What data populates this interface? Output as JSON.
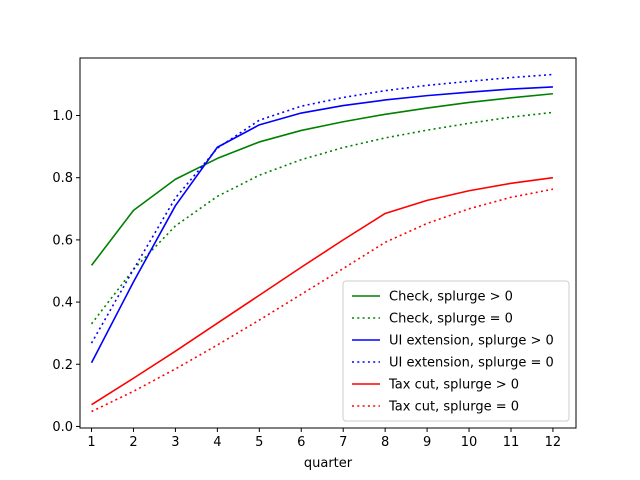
{
  "chart_data": {
    "type": "line",
    "title": "",
    "xlabel": "quarter",
    "ylabel": "",
    "x": [
      1,
      2,
      3,
      4,
      5,
      6,
      7,
      8,
      9,
      10,
      11,
      12
    ],
    "xlim": [
      0.725,
      12.55
    ],
    "ylim": [
      -0.005,
      1.185
    ],
    "xticks": [
      1,
      2,
      3,
      4,
      5,
      6,
      7,
      8,
      9,
      10,
      11,
      12
    ],
    "yticks": [
      0.0,
      0.2,
      0.4,
      0.6,
      0.8,
      1.0
    ],
    "ytick_labels": [
      "0.0",
      "0.2",
      "0.4",
      "0.6",
      "0.8",
      "1.0"
    ],
    "grid": false,
    "legend_position": "lower-right",
    "series": [
      {
        "name": "Check, splurge > 0",
        "color": "#008000",
        "style": "solid",
        "values": [
          0.518,
          0.695,
          0.795,
          0.862,
          0.915,
          0.952,
          0.98,
          1.004,
          1.024,
          1.042,
          1.057,
          1.07
        ]
      },
      {
        "name": "Check, splurge = 0",
        "color": "#008000",
        "style": "dotted",
        "values": [
          0.33,
          0.505,
          0.645,
          0.74,
          0.808,
          0.858,
          0.897,
          0.928,
          0.953,
          0.975,
          0.995,
          1.01
        ]
      },
      {
        "name": "UI extension, splurge > 0",
        "color": "#0000ff",
        "style": "solid",
        "values": [
          0.205,
          0.465,
          0.71,
          0.898,
          0.97,
          1.008,
          1.032,
          1.05,
          1.064,
          1.075,
          1.085,
          1.092
        ]
      },
      {
        "name": "UI extension, splurge = 0",
        "color": "#0000ff",
        "style": "dotted",
        "values": [
          0.268,
          0.505,
          0.735,
          0.895,
          0.985,
          1.03,
          1.058,
          1.08,
          1.097,
          1.11,
          1.122,
          1.132
        ]
      },
      {
        "name": "Tax cut, splurge > 0",
        "color": "#ff0000",
        "style": "solid",
        "values": [
          0.07,
          0.155,
          0.242,
          0.332,
          0.422,
          0.512,
          0.6,
          0.685,
          0.727,
          0.758,
          0.782,
          0.8
        ]
      },
      {
        "name": "Tax cut, splurge = 0",
        "color": "#ff0000",
        "style": "dotted",
        "values": [
          0.048,
          0.113,
          0.185,
          0.262,
          0.342,
          0.425,
          0.508,
          0.592,
          0.653,
          0.7,
          0.737,
          0.763
        ]
      }
    ]
  }
}
